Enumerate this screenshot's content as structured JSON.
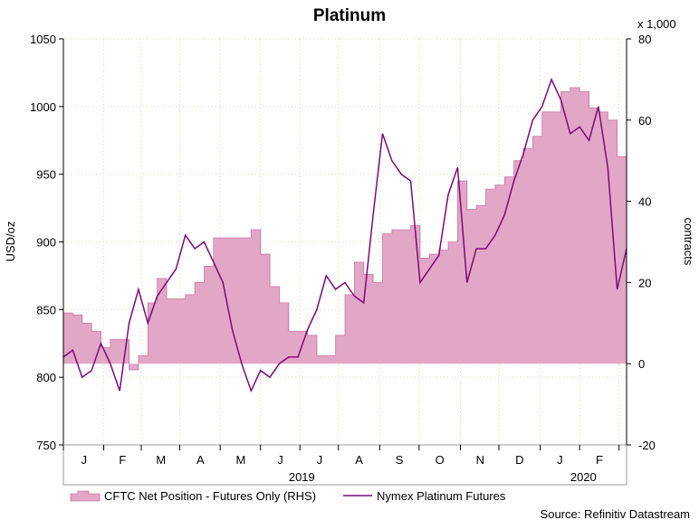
{
  "chart_data": {
    "type": "combo",
    "title": "Platinum",
    "y_label": "USD/oz",
    "y2_label": "contracts",
    "y2_multiplier": "x 1,000",
    "source": "Source: Refinitiv Datastream",
    "x": [
      0,
      1,
      2,
      3,
      4,
      5,
      6,
      7,
      8,
      9,
      10,
      11,
      12,
      13,
      14,
      15,
      16,
      17,
      18,
      19,
      20,
      21,
      22,
      23,
      24,
      25,
      26,
      27,
      28,
      29,
      30,
      31,
      32,
      33,
      34,
      35,
      36,
      37,
      38,
      39,
      40,
      41,
      42,
      43,
      44,
      45,
      46,
      47,
      48,
      49,
      50,
      51,
      52,
      53,
      54,
      55,
      56,
      57,
      58,
      59,
      60
    ],
    "xlim": [
      0,
      60
    ],
    "xticks": [
      {
        "value": 2.2,
        "label": "J"
      },
      {
        "value": 6.3,
        "label": "F"
      },
      {
        "value": 10.4,
        "label": "M"
      },
      {
        "value": 14.6,
        "label": "A"
      },
      {
        "value": 18.9,
        "label": "M"
      },
      {
        "value": 23.1,
        "label": "J"
      },
      {
        "value": 27.3,
        "label": "J"
      },
      {
        "value": 31.5,
        "label": "A"
      },
      {
        "value": 35.8,
        "label": "S"
      },
      {
        "value": 40.1,
        "label": "O"
      },
      {
        "value": 44.4,
        "label": "N"
      },
      {
        "value": 48.6,
        "label": "D"
      },
      {
        "value": 52.9,
        "label": "J"
      },
      {
        "value": 57.1,
        "label": "F"
      }
    ],
    "xgrid": [
      0,
      4.3,
      8.3,
      12.4,
      16.7,
      21.0,
      25.2,
      29.3,
      33.7,
      37.9,
      42.3,
      46.4,
      50.8,
      55.0,
      59.2
    ],
    "year_labels": [
      {
        "value": 25.4,
        "label": "2019"
      },
      {
        "value": 55.4,
        "label": "2020"
      }
    ],
    "ylim": [
      750,
      1050
    ],
    "yticks": [
      750,
      800,
      850,
      900,
      950,
      1000,
      1050
    ],
    "y2lim": [
      -20,
      80
    ],
    "y2ticks": [
      -20,
      0,
      20,
      40,
      60,
      80
    ],
    "grid": true,
    "series": [
      {
        "name": "CFTC Net Position - Futures Only (RHS)",
        "type": "area",
        "axis": "y2",
        "color": "#e2a6c6",
        "edge": "#b8548a",
        "values": [
          12.5,
          12,
          10,
          8,
          4,
          6,
          6,
          -1.5,
          2,
          15,
          21,
          16,
          16,
          17,
          20,
          24,
          31,
          31,
          31,
          31,
          33,
          27,
          19,
          15,
          8,
          8,
          7,
          2,
          2,
          7,
          17,
          25,
          22,
          20,
          32,
          33,
          33,
          34,
          26,
          27,
          28,
          30,
          45,
          38,
          39,
          43,
          44,
          46,
          50,
          53,
          56,
          62,
          62,
          67,
          68,
          67,
          63,
          62,
          60,
          51,
          34
        ]
      },
      {
        "name": "Nymex Platinum Futures",
        "type": "line",
        "axis": "y",
        "color": "#7a0a7a",
        "values": [
          815,
          820,
          800,
          805,
          825,
          810,
          790,
          840,
          865,
          840,
          860,
          870,
          880,
          905,
          895,
          900,
          885,
          870,
          835,
          810,
          790,
          805,
          800,
          810,
          815,
          815,
          835,
          850,
          875,
          865,
          870,
          860,
          855,
          920,
          980,
          960,
          950,
          945,
          870,
          880,
          890,
          935,
          955,
          870,
          895,
          895,
          905,
          920,
          945,
          965,
          990,
          1000,
          1020,
          1005,
          980,
          985,
          975,
          1000,
          955,
          865,
          895
        ]
      }
    ]
  }
}
